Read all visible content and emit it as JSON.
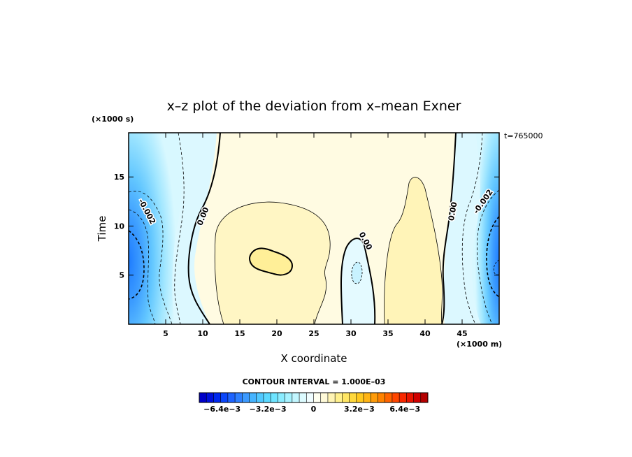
{
  "chart_data": {
    "type": "heatmap",
    "title": "x–z plot of the deviation from x–mean Exner",
    "xlabel": "X coordinate",
    "ylabel": "Time",
    "x_unit": "(×1000 m)",
    "y_unit": "(×1000 s)",
    "time_label": "t=765000",
    "xlim": [
      0,
      50
    ],
    "ylim": [
      0,
      19.5
    ],
    "x_ticks": [
      5,
      10,
      15,
      20,
      25,
      30,
      35,
      40,
      45
    ],
    "x_tick_labels": [
      "5",
      "10",
      "15",
      "20",
      "25",
      "30",
      "35",
      "40",
      "45"
    ],
    "y_ticks": [
      5,
      10,
      15
    ],
    "y_tick_labels": [
      "5",
      "10",
      "15"
    ],
    "contour_interval_label": "CONTOUR INTERVAL = 1.000E–03",
    "contour_labels": [
      {
        "text": "-0.002",
        "x": 2.5,
        "y": 11.5,
        "angle": 62
      },
      {
        "text": "0.00",
        "x": 10,
        "y": 11,
        "angle": -68
      },
      {
        "text": "0.00",
        "x": 32,
        "y": 8.5,
        "angle": 62
      },
      {
        "text": "0.00",
        "x": 43.7,
        "y": 11.5,
        "angle": -80
      },
      {
        "text": "-0.002",
        "x": 47.8,
        "y": 12.5,
        "angle": -55
      }
    ],
    "features": [
      {
        "name": "negative-min-left",
        "x": 0,
        "y": 5.5,
        "value": -0.0055
      },
      {
        "name": "negative-min-right",
        "x": 50,
        "y": 5.5,
        "value": -0.0055
      },
      {
        "name": "positive-max-center",
        "x": 20,
        "y": 6.5,
        "value": 0.002
      },
      {
        "name": "positive-max-right",
        "x": 38.5,
        "y": 6,
        "value": 0.0015
      },
      {
        "name": "weak-negative-center",
        "x": 31,
        "y": 5.5,
        "value": -0.001
      }
    ],
    "colorbar": {
      "min": -0.008,
      "max": 0.008,
      "ticks": [
        -0.0064,
        -0.0032,
        0,
        0.0032,
        0.0064
      ],
      "tick_labels": [
        "−6.4e−3",
        "−3.2e−3",
        "0",
        "3.2e−3",
        "6.4e−3"
      ],
      "colors": [
        "#0000c8",
        "#0010dc",
        "#0028ee",
        "#0a46fa",
        "#1e64ff",
        "#2e80ff",
        "#3c9aff",
        "#46b4ff",
        "#50c8ff",
        "#5ad8ff",
        "#6ee4ff",
        "#8aecff",
        "#a6f2ff",
        "#c2f6ff",
        "#dcfbff",
        "#f0fdff",
        "#fffff0",
        "#fffad8",
        "#fff4b4",
        "#fff08c",
        "#ffe664",
        "#ffd83c",
        "#ffc81e",
        "#ffb414",
        "#ff9c0a",
        "#ff8200",
        "#ff6400",
        "#ff4600",
        "#f82800",
        "#e81400",
        "#d00000",
        "#b40000"
      ]
    }
  }
}
